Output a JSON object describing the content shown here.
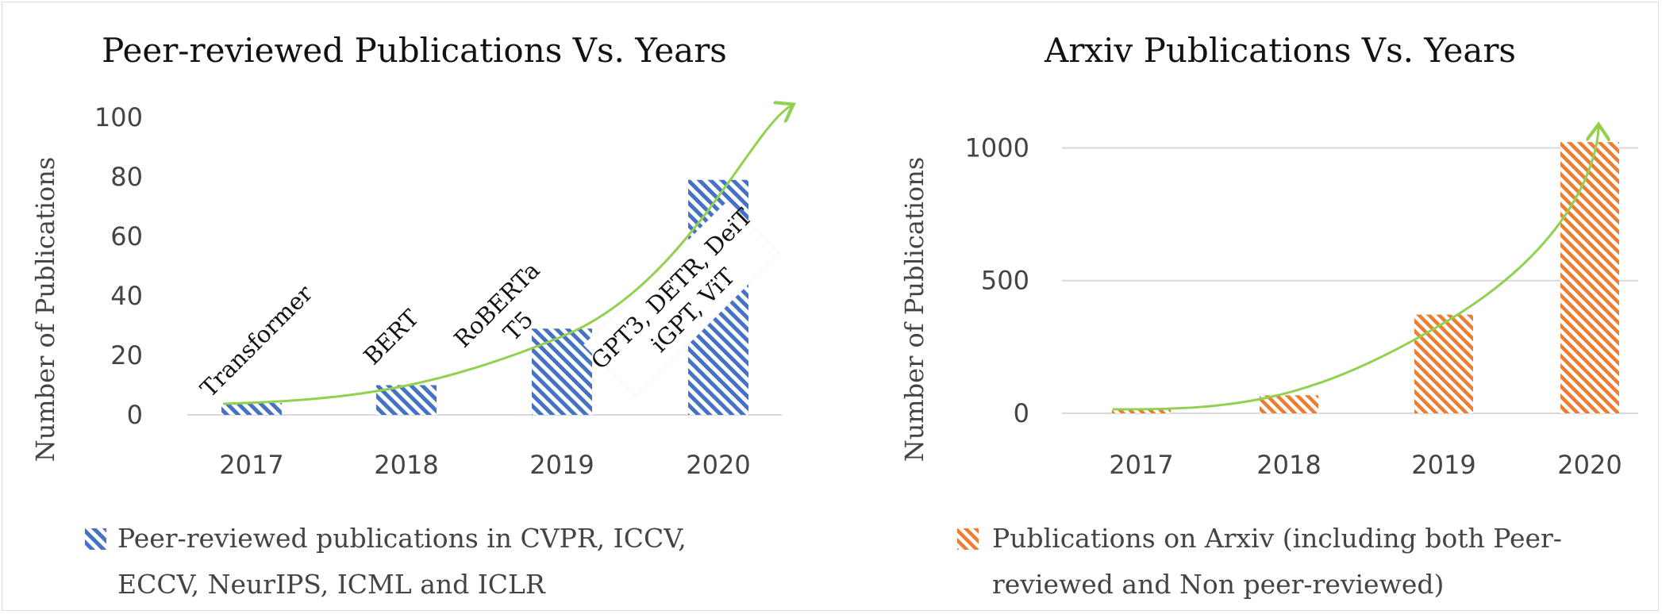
{
  "chart_data": [
    {
      "type": "bar",
      "title": "Peer-reviewed Publications Vs. Years",
      "xlabel": "",
      "ylabel": "Number of Publications",
      "categories": [
        "2017",
        "2018",
        "2019",
        "2020"
      ],
      "series": [
        {
          "name": "Peer-reviewed publications in CVPR, ICCV, ECCV, NeurIPS, ICML and ICLR",
          "values": [
            4,
            10,
            29,
            79
          ],
          "color": "#4472c4",
          "pattern": "diagonal-hatch"
        }
      ],
      "legend_lines": [
        "Peer-reviewed publications in CVPR, ICCV,",
        "ECCV, NeurIPS, ICML and ICLR"
      ],
      "ylim": [
        0,
        100
      ],
      "yticks": [
        0,
        20,
        40,
        60,
        80,
        100
      ],
      "grid": false,
      "legend_position": "bottom",
      "trend_arrow_color": "#92d050",
      "annotations": [
        {
          "category": "2017",
          "lines": [
            "Transformer"
          ]
        },
        {
          "category": "2018",
          "lines": [
            "BERT"
          ]
        },
        {
          "category": "2019",
          "lines": [
            "RoBERTa",
            "T5"
          ]
        },
        {
          "category": "2020",
          "lines": [
            "GPT3, DETR, DeiT",
            "iGPT, ViT"
          ]
        }
      ]
    },
    {
      "type": "bar",
      "title": "Arxiv Publications Vs. Years",
      "xlabel": "",
      "ylabel": "Number of Publications",
      "categories": [
        "2017",
        "2018",
        "2019",
        "2020"
      ],
      "series": [
        {
          "name": "Publications on Arxiv (including both Peer-reviewed and Non peer-reviewed)",
          "values": [
            18,
            68,
            372,
            1022
          ],
          "color": "#ed7d31",
          "pattern": "diagonal-hatch"
        }
      ],
      "legend_lines": [
        "Publications on Arxiv (including both Peer-",
        "reviewed and Non peer-reviewed)"
      ],
      "ylim": [
        0,
        1100
      ],
      "yticks": [
        0,
        500,
        1000
      ],
      "grid": true,
      "legend_position": "bottom",
      "trend_arrow_color": "#92d050"
    }
  ]
}
